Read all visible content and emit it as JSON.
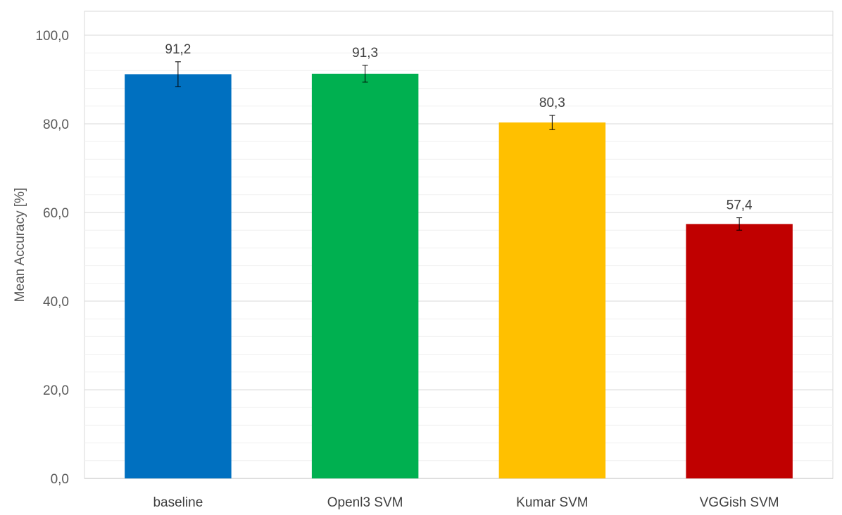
{
  "chart_data": {
    "type": "bar",
    "title": "",
    "xlabel": "",
    "ylabel": "Mean Accuracy [%]",
    "ylim": [
      0,
      100
    ],
    "major_ticks": [
      0,
      20,
      40,
      60,
      80,
      100
    ],
    "minor_tick_step": 4,
    "tick_labels": [
      "0,0",
      "20,0",
      "40,0",
      "60,0",
      "80,0",
      "100,0"
    ],
    "grid": true,
    "legend": "none",
    "categories": [
      "baseline",
      "Openl3 SVM",
      "Kumar SVM",
      "VGGish SVM"
    ],
    "values": [
      91.2,
      91.3,
      80.3,
      57.4
    ],
    "value_labels": [
      "91,2",
      "91,3",
      "80,3",
      "57,4"
    ],
    "error_bars": [
      2.8,
      1.9,
      1.6,
      1.4
    ],
    "colors": [
      "#0070C0",
      "#00B050",
      "#FFC000",
      "#C00000"
    ]
  }
}
